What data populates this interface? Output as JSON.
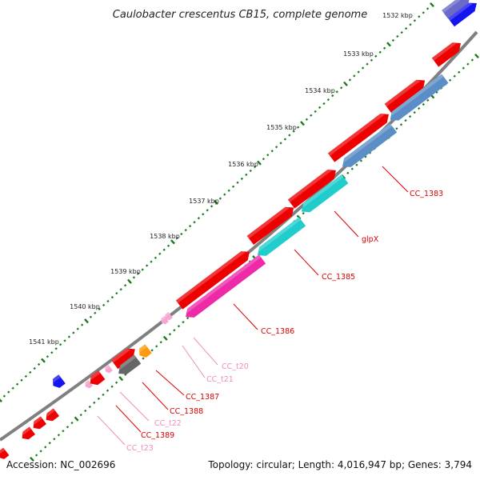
{
  "title": "Caulobacter crescentus CB15, complete genome",
  "colors": {
    "backbone": "#808080",
    "tick": "#1a7a1a",
    "feature_red": "#ee0000",
    "feature_steelblue": "#5b8ec6",
    "feature_cyan": "#20cccc",
    "feature_magenta": "#ee2aa8",
    "feature_pink": "#f7a6cf",
    "feature_gray": "#666666",
    "feature_orange": "#ff9a10",
    "feature_blue": "#1414ee",
    "feature_slate": "#6a6ac8",
    "label_red": "#dd0000",
    "label_pink": "#f08cbe"
  },
  "ruler": {
    "labels": [
      "1532 kbp",
      "1533 kbp",
      "1534 kbp",
      "1535 kbp",
      "1536 kbp",
      "1537 kbp",
      "1538 kbp",
      "1539 kbp",
      "1540 kbp",
      "1541 kbp"
    ]
  },
  "gene_labels": [
    {
      "text": "CC_1383",
      "color": "label_red"
    },
    {
      "text": "glpX",
      "color": "label_red"
    },
    {
      "text": "CC_1385",
      "color": "label_red"
    },
    {
      "text": "CC_1386",
      "color": "label_red"
    },
    {
      "text": "CC_t20",
      "color": "label_pink"
    },
    {
      "text": "CC_t21",
      "color": "label_pink"
    },
    {
      "text": "CC_1387",
      "color": "label_red"
    },
    {
      "text": "CC_1388",
      "color": "label_red"
    },
    {
      "text": "CC_t22",
      "color": "label_pink"
    },
    {
      "text": "CC_1389",
      "color": "label_red"
    },
    {
      "text": "CC_t23",
      "color": "label_pink"
    }
  ],
  "footer": {
    "accession": "Accession: NC_002696",
    "summary": "Topology: circular; Length: 4,016,947 bp; Genes: 3,794"
  }
}
